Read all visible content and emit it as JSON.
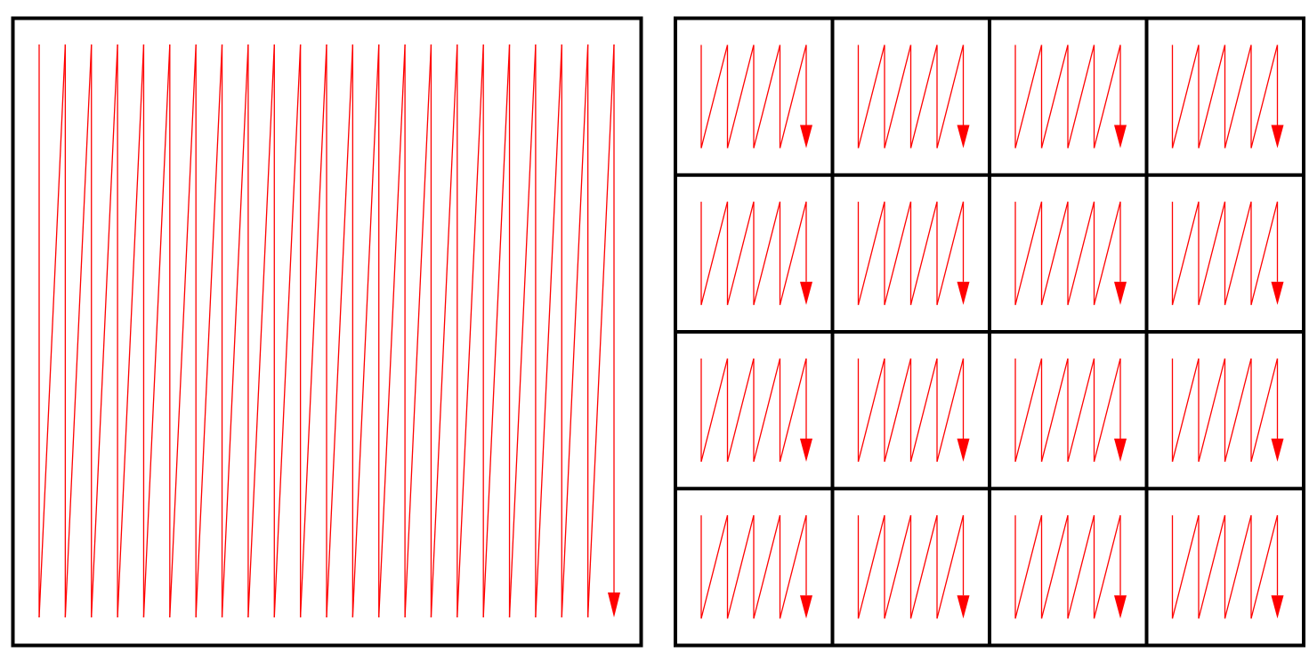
{
  "colors": {
    "background": "#ffffff",
    "frame": "#000000",
    "path": "#ff0000"
  },
  "left_panel": {
    "kind": "single-scan",
    "strokes": 23,
    "arrowhead": "down"
  },
  "right_panel": {
    "kind": "tiled-scan",
    "tile_rows": 4,
    "tile_cols": 4,
    "strokes_per_tile": 5,
    "arrowhead": "down"
  }
}
